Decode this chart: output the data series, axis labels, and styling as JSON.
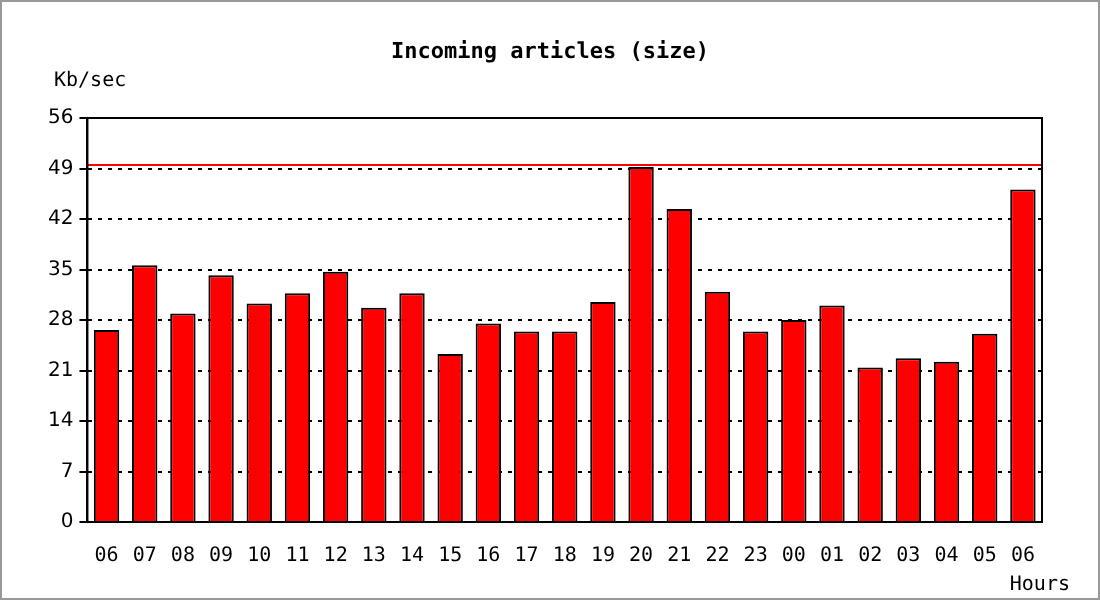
{
  "chart_data": {
    "type": "bar",
    "title": "Incoming articles (size)",
    "ylabel": "Kb/sec",
    "xlabel": "Hours",
    "categories": [
      "06",
      "07",
      "08",
      "09",
      "10",
      "11",
      "12",
      "13",
      "14",
      "15",
      "16",
      "17",
      "18",
      "19",
      "20",
      "21",
      "22",
      "23",
      "00",
      "01",
      "02",
      "03",
      "04",
      "05",
      "06"
    ],
    "series": [
      {
        "color": "#ff0000",
        "values": [
          26.6,
          35.6,
          28.9,
          34.2,
          30.3,
          31.7,
          34.7,
          29.7,
          31.7,
          23.3,
          27.5,
          26.4,
          26.4,
          30.5,
          49.2,
          43.4,
          31.9,
          26.4,
          28.0,
          30.0,
          21.4,
          22.7,
          22.2,
          26.1,
          46.1
        ]
      }
    ],
    "ylim": [
      0,
      56
    ],
    "yticks": [
      0,
      7,
      14,
      21,
      28,
      35,
      42,
      49,
      56
    ],
    "grid": "y",
    "line_style": "dotted",
    "ref_lines": [
      {
        "axis": "y",
        "value": 49.5,
        "color": "#ff0000"
      }
    ],
    "legend": false
  }
}
